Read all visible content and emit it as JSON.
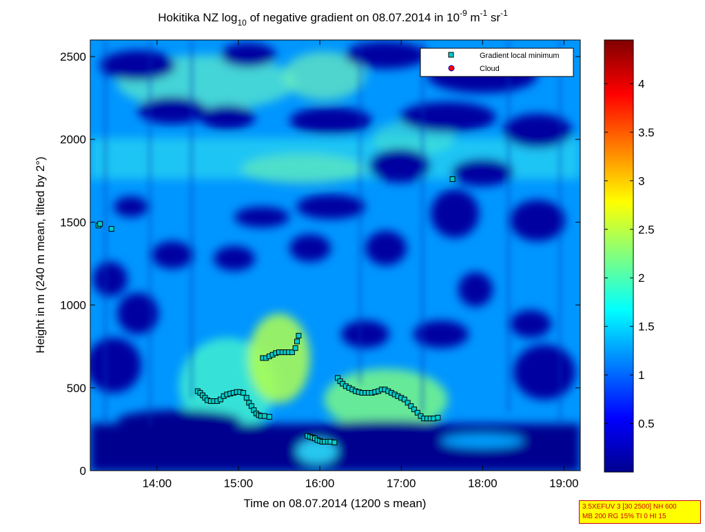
{
  "chart_data": {
    "type": "heatmap",
    "title": {
      "prefix": "Hokitika NZ log",
      "prefix_sub": "10",
      "middle": " of negative gradient on 08.07.2014 in 10",
      "exp1": "-9",
      "unit1": " m",
      "exp2": "-1",
      "unit2": " sr",
      "exp3": "-1"
    },
    "xlabel": "Time on 08.07.2014 (1200 s mean)",
    "ylabel": "Height in m (240 m mean, tilted by 2°)",
    "x_ticks": [
      "14:00",
      "15:00",
      "16:00",
      "17:00",
      "18:00",
      "19:00"
    ],
    "x_tick_hours": [
      14,
      15,
      16,
      17,
      18,
      19
    ],
    "xlim_hours": [
      13.18,
      19.2
    ],
    "y_ticks": [
      "0",
      "500",
      "1000",
      "1500",
      "2000",
      "2500"
    ],
    "y_tick_values": [
      0,
      500,
      1000,
      1500,
      2000,
      2500
    ],
    "ylim": [
      0,
      2600
    ],
    "colorbar": {
      "ticks": [
        "0.5",
        "1",
        "1.5",
        "2",
        "2.5",
        "3",
        "3.5",
        "4"
      ],
      "tick_values": [
        0.5,
        1,
        1.5,
        2,
        2.5,
        3,
        3.5,
        4
      ],
      "range": [
        0,
        4.45
      ],
      "colormap": "jet"
    },
    "legend": {
      "position": "top-right",
      "entries": [
        {
          "label": "Gradient local minimum",
          "marker": "square",
          "color": "#00cccc"
        },
        {
          "label": "Cloud",
          "marker": "circle",
          "color": "#ff0000"
        }
      ]
    },
    "series": [
      {
        "name": "Gradient local minimum",
        "points": [
          [
            13.28,
            1480
          ],
          [
            13.3,
            1490
          ],
          [
            13.44,
            1460
          ],
          [
            14.5,
            480
          ],
          [
            14.53,
            470
          ],
          [
            14.56,
            455
          ],
          [
            14.59,
            440
          ],
          [
            14.62,
            425
          ],
          [
            14.66,
            420
          ],
          [
            14.7,
            420
          ],
          [
            14.74,
            420
          ],
          [
            14.78,
            430
          ],
          [
            14.82,
            450
          ],
          [
            14.86,
            460
          ],
          [
            14.9,
            465
          ],
          [
            14.94,
            470
          ],
          [
            14.98,
            475
          ],
          [
            15.02,
            475
          ],
          [
            15.06,
            470
          ],
          [
            15.1,
            440
          ],
          [
            15.13,
            410
          ],
          [
            15.16,
            390
          ],
          [
            15.19,
            365
          ],
          [
            15.22,
            345
          ],
          [
            15.25,
            335
          ],
          [
            15.28,
            330
          ],
          [
            15.32,
            330
          ],
          [
            15.38,
            325
          ],
          [
            15.3,
            680
          ],
          [
            15.34,
            680
          ],
          [
            15.38,
            690
          ],
          [
            15.42,
            700
          ],
          [
            15.46,
            710
          ],
          [
            15.5,
            715
          ],
          [
            15.54,
            715
          ],
          [
            15.58,
            715
          ],
          [
            15.62,
            715
          ],
          [
            15.66,
            715
          ],
          [
            15.7,
            740
          ],
          [
            15.72,
            780
          ],
          [
            15.74,
            815
          ],
          [
            15.85,
            210
          ],
          [
            15.88,
            205
          ],
          [
            15.91,
            200
          ],
          [
            15.94,
            195
          ],
          [
            15.97,
            185
          ],
          [
            16.0,
            180
          ],
          [
            16.03,
            175
          ],
          [
            16.06,
            175
          ],
          [
            16.1,
            175
          ],
          [
            16.13,
            175
          ],
          [
            16.18,
            170
          ],
          [
            16.22,
            560
          ],
          [
            16.25,
            540
          ],
          [
            16.28,
            525
          ],
          [
            16.32,
            510
          ],
          [
            16.36,
            500
          ],
          [
            16.4,
            490
          ],
          [
            16.44,
            480
          ],
          [
            16.48,
            475
          ],
          [
            16.52,
            470
          ],
          [
            16.56,
            470
          ],
          [
            16.6,
            470
          ],
          [
            16.64,
            470
          ],
          [
            16.68,
            475
          ],
          [
            16.72,
            480
          ],
          [
            16.76,
            490
          ],
          [
            16.8,
            490
          ],
          [
            16.84,
            480
          ],
          [
            16.88,
            470
          ],
          [
            16.92,
            460
          ],
          [
            16.96,
            450
          ],
          [
            17.0,
            440
          ],
          [
            17.04,
            430
          ],
          [
            17.08,
            410
          ],
          [
            17.12,
            390
          ],
          [
            17.16,
            370
          ],
          [
            17.2,
            350
          ],
          [
            17.24,
            330
          ],
          [
            17.28,
            315
          ],
          [
            17.32,
            315
          ],
          [
            17.36,
            315
          ],
          [
            17.4,
            315
          ],
          [
            17.45,
            320
          ],
          [
            17.63,
            1760
          ]
        ]
      },
      {
        "name": "Cloud",
        "points": []
      }
    ]
  },
  "info_box": {
    "line1": "3.5XEFUV 3 [30 2500] NH 600",
    "line2": "MB 200 RG 15% TI 0 HI 15"
  }
}
